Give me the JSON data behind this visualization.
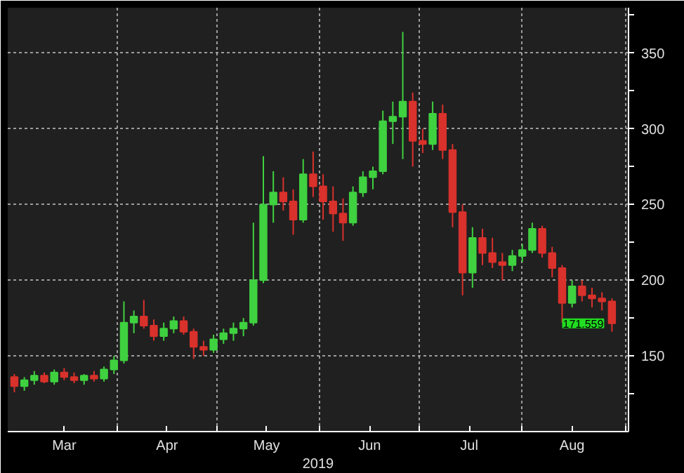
{
  "chart_data": {
    "type": "candlestick",
    "xlabel": "2019",
    "x": [
      "2019-03-01",
      "2019-03-04",
      "2019-03-07",
      "2019-03-10",
      "2019-03-13",
      "2019-03-16",
      "2019-03-19",
      "2019-03-22",
      "2019-03-25",
      "2019-03-28",
      "2019-03-31",
      "2019-04-03",
      "2019-04-06",
      "2019-04-09",
      "2019-04-12",
      "2019-04-15",
      "2019-04-18",
      "2019-04-21",
      "2019-04-24",
      "2019-04-27",
      "2019-04-30",
      "2019-05-03",
      "2019-05-06",
      "2019-05-09",
      "2019-05-12",
      "2019-05-15",
      "2019-05-18",
      "2019-05-21",
      "2019-05-24",
      "2019-05-27",
      "2019-05-30",
      "2019-06-02",
      "2019-06-05",
      "2019-06-08",
      "2019-06-11",
      "2019-06-14",
      "2019-06-17",
      "2019-06-20",
      "2019-06-23",
      "2019-06-26",
      "2019-06-29",
      "2019-07-02",
      "2019-07-05",
      "2019-07-08",
      "2019-07-11",
      "2019-07-14",
      "2019-07-17",
      "2019-07-20",
      "2019-07-23",
      "2019-07-26",
      "2019-07-29",
      "2019-08-01",
      "2019-08-04",
      "2019-08-07",
      "2019-08-10",
      "2019-08-13",
      "2019-08-16",
      "2019-08-19",
      "2019-08-22",
      "2019-08-25",
      "2019-08-28"
    ],
    "ohlc": [
      [
        136,
        138,
        126,
        130
      ],
      [
        130,
        136,
        127,
        134
      ],
      [
        134,
        140,
        131,
        137
      ],
      [
        137,
        139,
        132,
        133
      ],
      [
        133,
        141,
        131,
        139
      ],
      [
        139,
        142,
        134,
        136
      ],
      [
        136,
        139,
        132,
        134
      ],
      [
        134,
        138,
        131,
        137
      ],
      [
        137,
        140,
        133,
        135
      ],
      [
        135,
        143,
        133,
        141
      ],
      [
        141,
        150,
        138,
        147
      ],
      [
        147,
        186,
        145,
        172
      ],
      [
        172,
        180,
        165,
        176
      ],
      [
        176,
        187,
        168,
        170
      ],
      [
        170,
        174,
        160,
        163
      ],
      [
        163,
        172,
        160,
        168
      ],
      [
        168,
        176,
        165,
        173
      ],
      [
        173,
        176,
        164,
        166
      ],
      [
        166,
        168,
        148,
        156
      ],
      [
        156,
        160,
        150,
        154
      ],
      [
        154,
        164,
        152,
        161
      ],
      [
        161,
        168,
        158,
        165
      ],
      [
        165,
        172,
        160,
        168
      ],
      [
        168,
        175,
        163,
        172
      ],
      [
        172,
        238,
        170,
        200
      ],
      [
        200,
        282,
        198,
        250
      ],
      [
        250,
        272,
        238,
        258
      ],
      [
        258,
        268,
        246,
        252
      ],
      [
        252,
        260,
        230,
        240
      ],
      [
        240,
        280,
        238,
        270
      ],
      [
        270,
        285,
        255,
        262
      ],
      [
        262,
        270,
        240,
        252
      ],
      [
        252,
        262,
        232,
        244
      ],
      [
        244,
        254,
        226,
        238
      ],
      [
        238,
        262,
        236,
        258
      ],
      [
        258,
        272,
        255,
        268
      ],
      [
        268,
        275,
        260,
        272
      ],
      [
        272,
        312,
        270,
        305
      ],
      [
        305,
        318,
        290,
        308
      ],
      [
        308,
        364,
        280,
        318
      ],
      [
        318,
        324,
        275,
        292
      ],
      [
        292,
        300,
        284,
        290
      ],
      [
        290,
        318,
        286,
        310
      ],
      [
        310,
        316,
        280,
        286
      ],
      [
        286,
        290,
        235,
        245
      ],
      [
        245,
        250,
        190,
        205
      ],
      [
        205,
        235,
        195,
        228
      ],
      [
        228,
        234,
        210,
        218
      ],
      [
        218,
        228,
        208,
        212
      ],
      [
        212,
        218,
        200,
        210
      ],
      [
        210,
        220,
        206,
        216
      ],
      [
        216,
        224,
        212,
        220
      ],
      [
        220,
        238,
        218,
        234
      ],
      [
        234,
        236,
        215,
        218
      ],
      [
        218,
        222,
        202,
        208
      ],
      [
        208,
        210,
        172,
        185
      ],
      [
        185,
        200,
        182,
        196
      ],
      [
        196,
        200,
        186,
        190
      ],
      [
        190,
        195,
        182,
        188
      ],
      [
        188,
        192,
        180,
        186
      ],
      [
        186,
        188,
        166,
        171.559
      ]
    ],
    "colors": [
      "#d9312b",
      "#3fd13f",
      "#3fd13f",
      "#d9312b",
      "#3fd13f",
      "#d9312b",
      "#d9312b",
      "#3fd13f",
      "#d9312b",
      "#3fd13f",
      "#3fd13f",
      "#3fd13f",
      "#3fd13f",
      "#d9312b",
      "#d9312b",
      "#3fd13f",
      "#3fd13f",
      "#d9312b",
      "#d9312b",
      "#d9312b",
      "#3fd13f",
      "#3fd13f",
      "#3fd13f",
      "#3fd13f",
      "#3fd13f",
      "#3fd13f",
      "#3fd13f",
      "#d9312b",
      "#d9312b",
      "#3fd13f",
      "#d9312b",
      "#d9312b",
      "#d9312b",
      "#d9312b",
      "#3fd13f",
      "#3fd13f",
      "#3fd13f",
      "#3fd13f",
      "#3fd13f",
      "#3fd13f",
      "#d9312b",
      "#d9312b",
      "#3fd13f",
      "#d9312b",
      "#d9312b",
      "#d9312b",
      "#3fd13f",
      "#d9312b",
      "#d9312b",
      "#d9312b",
      "#3fd13f",
      "#3fd13f",
      "#3fd13f",
      "#d9312b",
      "#d9312b",
      "#d9312b",
      "#3fd13f",
      "#d9312b",
      "#d9312b",
      "#d9312b",
      "#d9312b"
    ],
    "xlim": [
      "2019-02-27",
      "2019-09-02"
    ],
    "xticks": [
      {
        "value": "2019-04-01",
        "label": null
      },
      {
        "value": "2019-05-01",
        "label": null
      },
      {
        "value": "2019-06-01",
        "label": null
      },
      {
        "value": "2019-07-01",
        "label": null
      },
      {
        "value": "2019-08-01",
        "label": null
      },
      {
        "value": "2019-09-01",
        "label": null
      },
      {
        "value": "2019-03-16",
        "label": "Mar"
      },
      {
        "value": "2019-04-16",
        "label": "Apr"
      },
      {
        "value": "2019-05-16",
        "label": "May"
      },
      {
        "value": "2019-06-16",
        "label": "Jun"
      },
      {
        "value": "2019-07-16",
        "label": "Jul"
      },
      {
        "value": "2019-08-16",
        "label": "Aug"
      }
    ],
    "ylim": [
      100,
      380
    ],
    "yticks": [
      {
        "value": 125,
        "label": null
      },
      150,
      {
        "value": 175,
        "label": null
      },
      200,
      {
        "value": 225,
        "label": null
      },
      250,
      {
        "value": 275,
        "label": null
      },
      300,
      {
        "value": 325,
        "label": null
      },
      350,
      {
        "value": 375,
        "label": null
      }
    ],
    "grid": true,
    "annotations": [
      {
        "text": "171.559",
        "x": "2019-08-28",
        "y": 171.559
      }
    ]
  }
}
